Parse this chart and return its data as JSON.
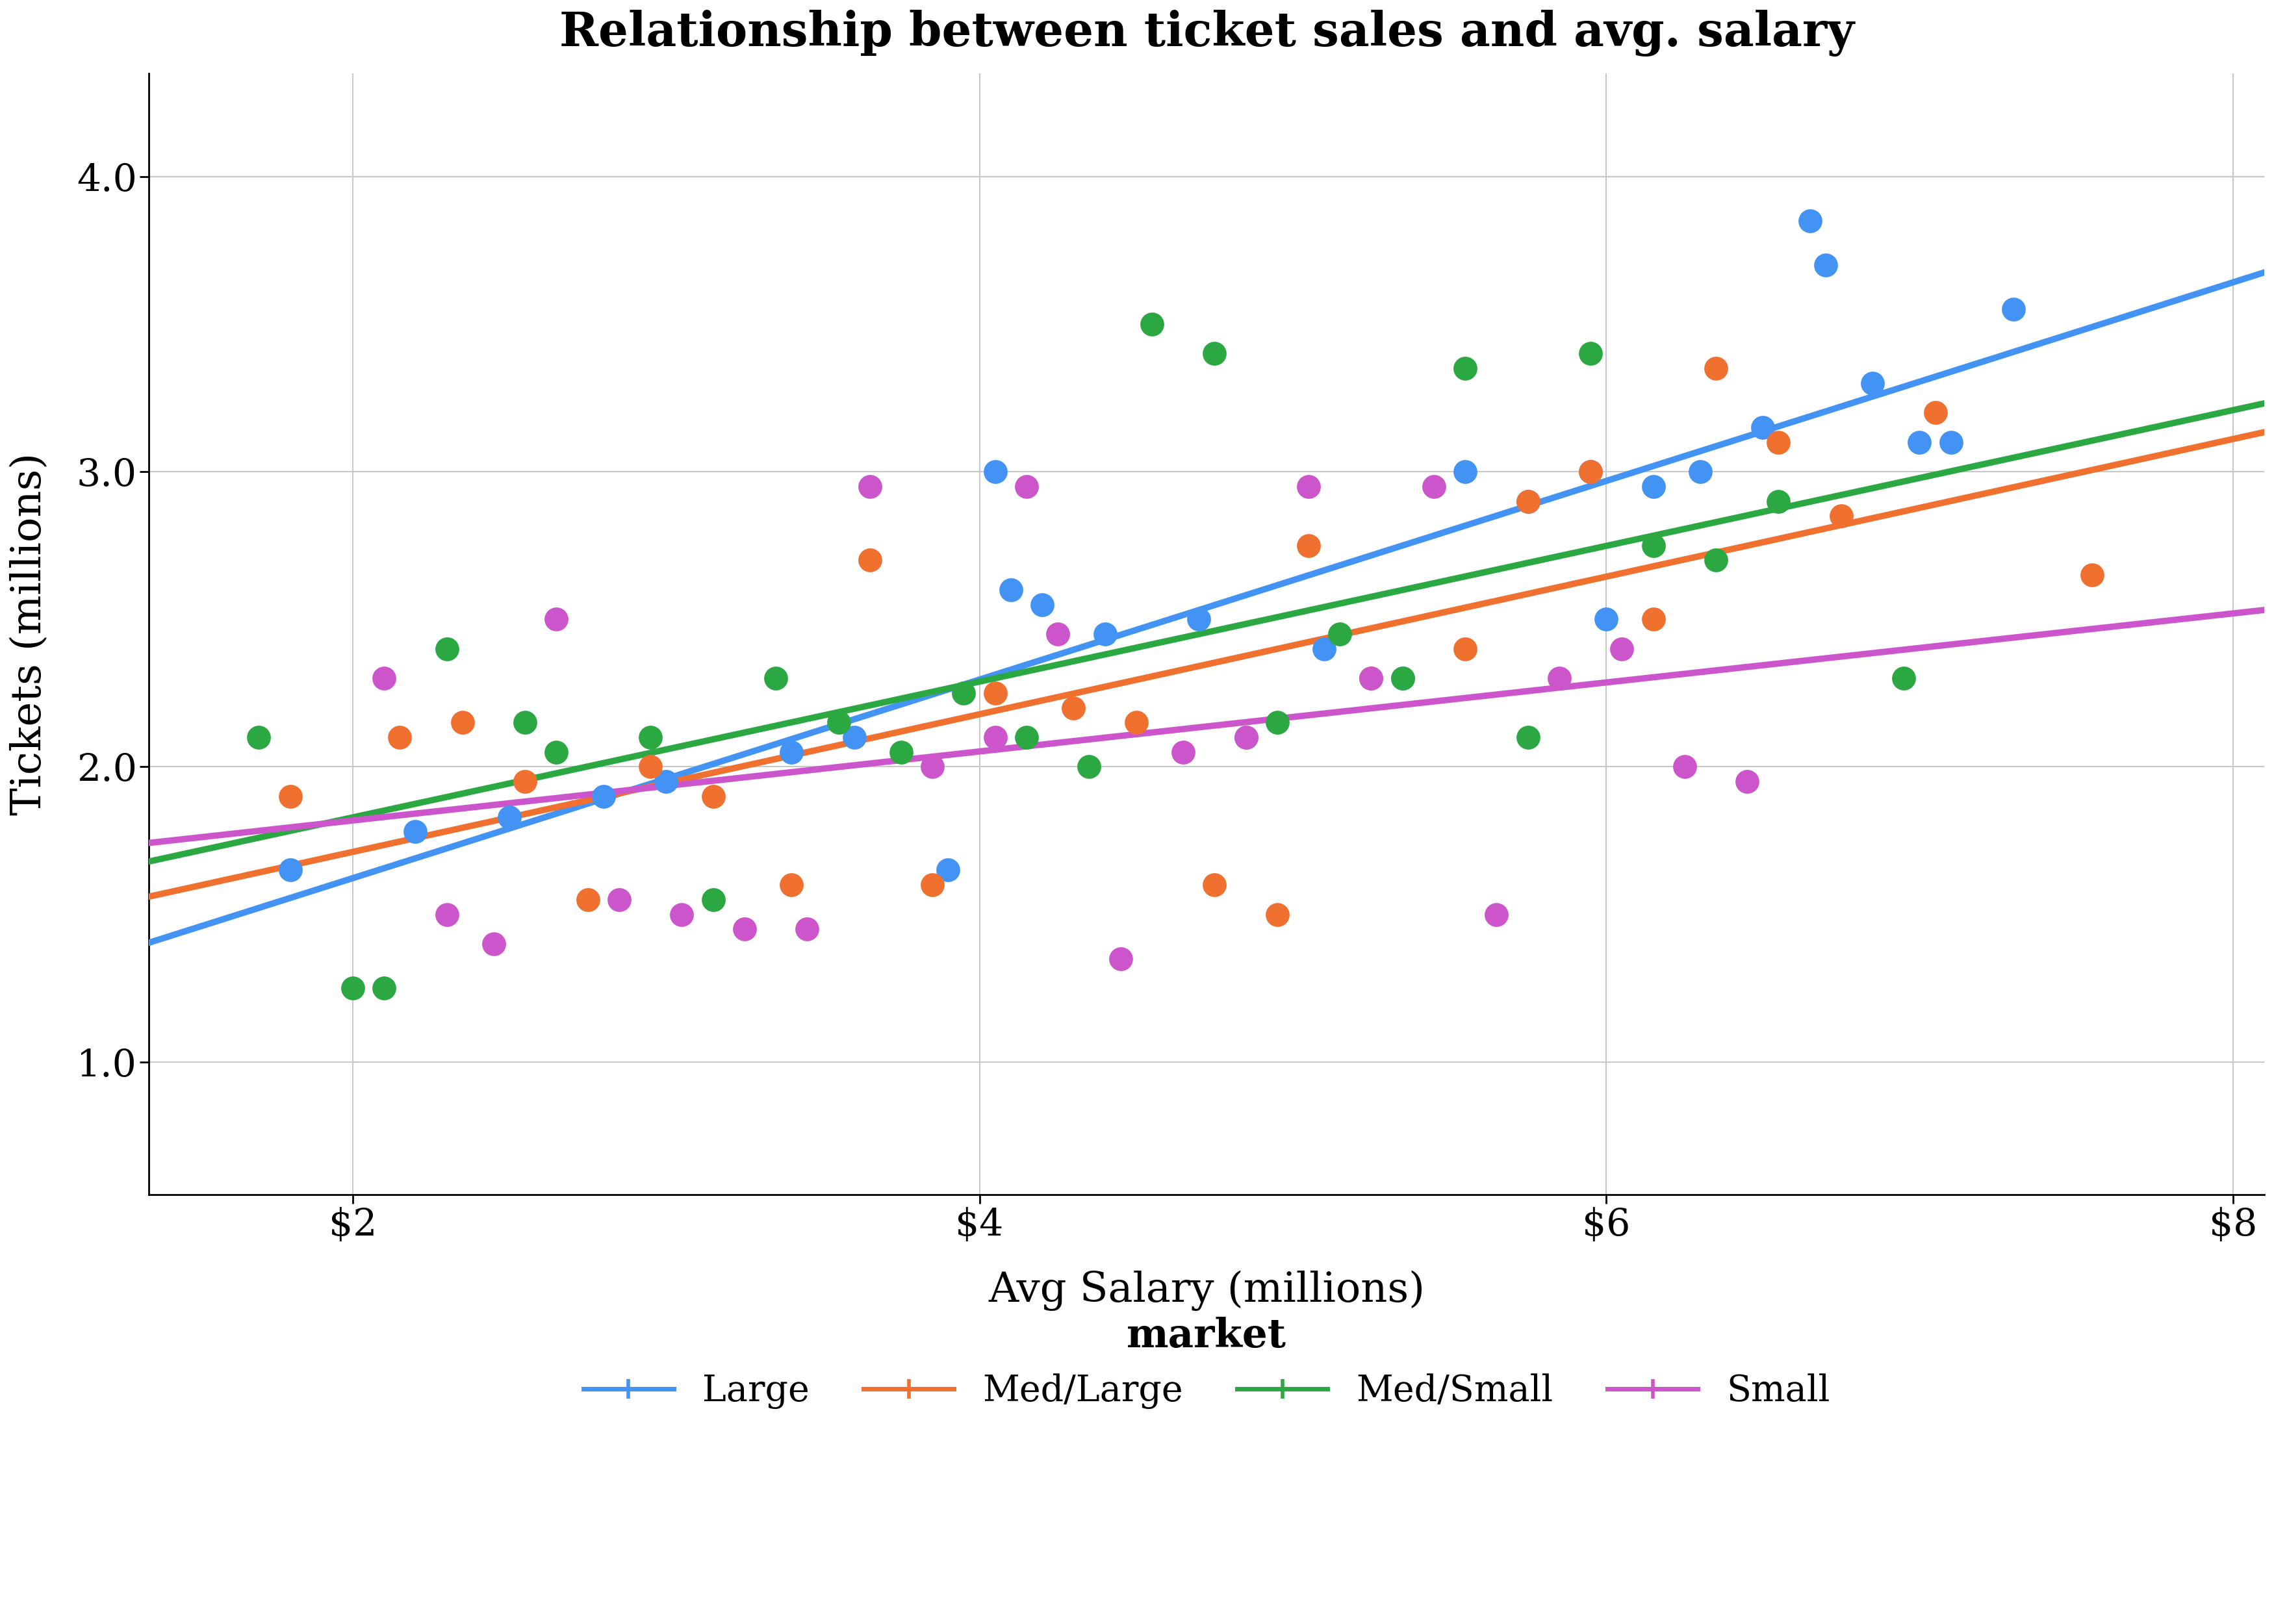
{
  "title": "Relationship between ticket sales and avg. salary",
  "xlabel": "Avg Salary (millions)",
  "ylabel": "Tickets (millions)",
  "legend_title": "market",
  "xlim": [
    1.35,
    8.1
  ],
  "ylim": [
    0.55,
    4.35
  ],
  "xticks": [
    2,
    4,
    6,
    8
  ],
  "yticks": [
    1.0,
    2.0,
    3.0,
    4.0
  ],
  "background_color": "#ffffff",
  "grid_color": "#c8c8c8",
  "categories": {
    "Large": {
      "color": "#4393F5",
      "x": [
        1.8,
        2.2,
        2.5,
        2.8,
        3.0,
        3.4,
        3.6,
        3.9,
        4.05,
        4.1,
        4.2,
        4.4,
        4.7,
        4.85,
        5.1,
        5.35,
        5.55,
        5.75,
        5.95,
        6.0,
        6.15,
        6.3,
        6.5,
        6.65,
        6.7,
        6.85,
        7.0,
        7.1,
        7.3
      ],
      "y": [
        1.65,
        1.78,
        1.83,
        1.9,
        1.95,
        2.05,
        2.1,
        1.65,
        3.0,
        2.6,
        2.55,
        2.45,
        2.5,
        2.1,
        2.4,
        2.3,
        3.0,
        2.9,
        3.0,
        2.5,
        2.95,
        3.0,
        3.15,
        3.85,
        3.7,
        3.3,
        3.1,
        3.1,
        3.55
      ]
    },
    "Med/Large": {
      "color": "#F07030",
      "x": [
        1.8,
        2.15,
        2.35,
        2.55,
        2.75,
        2.95,
        3.15,
        3.4,
        3.65,
        3.85,
        4.05,
        4.3,
        4.5,
        4.75,
        4.95,
        5.05,
        5.25,
        5.55,
        5.75,
        5.95,
        6.15,
        6.35,
        6.55,
        6.75,
        7.05,
        7.55
      ],
      "y": [
        1.9,
        2.1,
        2.15,
        1.95,
        1.55,
        2.0,
        1.9,
        1.6,
        2.7,
        1.6,
        2.25,
        2.2,
        2.15,
        1.6,
        1.5,
        2.75,
        2.3,
        2.4,
        2.9,
        3.0,
        2.5,
        3.35,
        3.1,
        2.85,
        3.2,
        2.65
      ]
    },
    "Med/Small": {
      "color": "#2CA843",
      "x": [
        1.7,
        2.0,
        2.1,
        2.3,
        2.55,
        2.65,
        2.95,
        3.15,
        3.35,
        3.55,
        3.75,
        3.95,
        4.15,
        4.35,
        4.55,
        4.75,
        4.95,
        5.15,
        5.35,
        5.55,
        5.75,
        5.95,
        6.15,
        6.35,
        6.55,
        6.95
      ],
      "y": [
        2.1,
        1.25,
        1.25,
        2.4,
        2.15,
        2.05,
        2.1,
        1.55,
        2.3,
        2.15,
        2.05,
        2.25,
        2.1,
        2.0,
        3.5,
        3.4,
        2.15,
        2.45,
        2.3,
        3.35,
        2.1,
        3.4,
        2.75,
        2.7,
        2.9,
        2.3
      ]
    },
    "Small": {
      "color": "#CC55CC",
      "x": [
        2.1,
        2.3,
        2.45,
        2.65,
        2.85,
        3.05,
        3.25,
        3.45,
        3.65,
        3.85,
        4.05,
        4.15,
        4.25,
        4.45,
        4.65,
        4.85,
        5.05,
        5.25,
        5.45,
        5.65,
        5.85,
        6.05,
        6.25,
        6.45
      ],
      "y": [
        2.3,
        1.5,
        1.4,
        2.5,
        1.55,
        1.5,
        1.45,
        1.45,
        2.95,
        2.0,
        2.1,
        2.95,
        2.45,
        1.35,
        2.05,
        2.1,
        2.95,
        2.3,
        2.95,
        1.5,
        2.3,
        2.4,
        2.0,
        1.95
      ]
    }
  },
  "point_size": 700,
  "line_width": 7,
  "title_fontsize": 52,
  "label_fontsize": 46,
  "tick_fontsize": 42,
  "legend_fontsize": 40,
  "legend_title_fontsize": 44
}
